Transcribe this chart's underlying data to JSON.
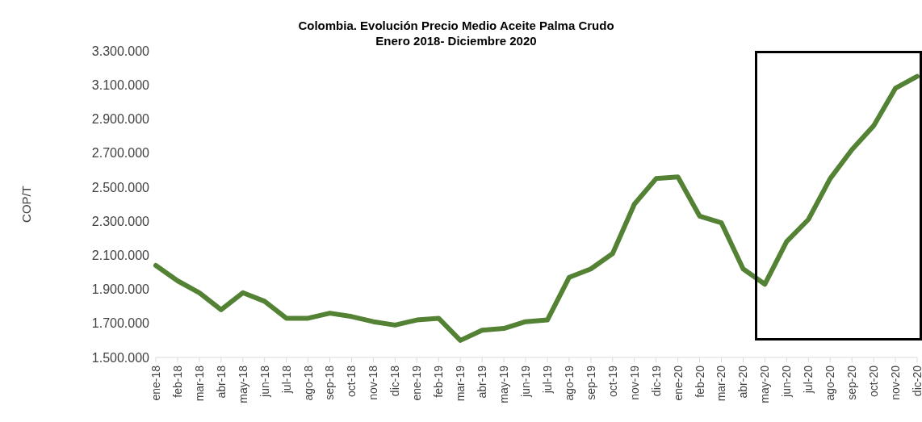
{
  "chart_data": {
    "type": "line",
    "title": "Colombia. Evolución Precio Medio Aceite Palma Crudo",
    "subtitle": "Enero 2018- Diciembre 2020",
    "ylabel": "COP/T",
    "categories": [
      "ene-18",
      "feb-18",
      "mar-18",
      "abr-18",
      "may-18",
      "jun-18",
      "jul-18",
      "ago-18",
      "sep-18",
      "oct-18",
      "nov-18",
      "dic-18",
      "ene-19",
      "feb-19",
      "mar-19",
      "abr-19",
      "may-19",
      "jun-19",
      "jul-19",
      "ago-19",
      "sep-19",
      "oct-19",
      "nov-19",
      "dic-19",
      "ene-20",
      "feb-20",
      "mar-20",
      "abr-20",
      "may-20",
      "jun-20",
      "jul-20",
      "ago-20",
      "sep-20",
      "oct-20",
      "nov-20",
      "dic-20"
    ],
    "series": [
      {
        "color": "#548235",
        "values": [
          2040000,
          1950000,
          1880000,
          1780000,
          1880000,
          1830000,
          1730000,
          1730000,
          1760000,
          1740000,
          1710000,
          1690000,
          1720000,
          1730000,
          1600000,
          1660000,
          1670000,
          1710000,
          1720000,
          1970000,
          2020000,
          2110000,
          2400000,
          2550000,
          2560000,
          2330000,
          2290000,
          2020000,
          1930000,
          2180000,
          2310000,
          2550000,
          2720000,
          2860000,
          3080000,
          3150000
        ]
      }
    ],
    "ylim": [
      1500000,
      3300000
    ],
    "yticks": [
      {
        "value": 1500000,
        "label": "1.500.000"
      },
      {
        "value": 1700000,
        "label": "1.700.000"
      },
      {
        "value": 1900000,
        "label": "1.900.000"
      },
      {
        "value": 2100000,
        "label": "2.100.000"
      },
      {
        "value": 2300000,
        "label": "2.300.000"
      },
      {
        "value": 2500000,
        "label": "2.500.000"
      },
      {
        "value": 2700000,
        "label": "2.700.000"
      },
      {
        "value": 2900000,
        "label": "2.900.000"
      },
      {
        "value": 3100000,
        "label": "3.100.000"
      },
      {
        "value": 3300000,
        "label": "3.300.000"
      }
    ],
    "grid": false,
    "legend": false,
    "marker": "none",
    "line_style": "solid"
  }
}
